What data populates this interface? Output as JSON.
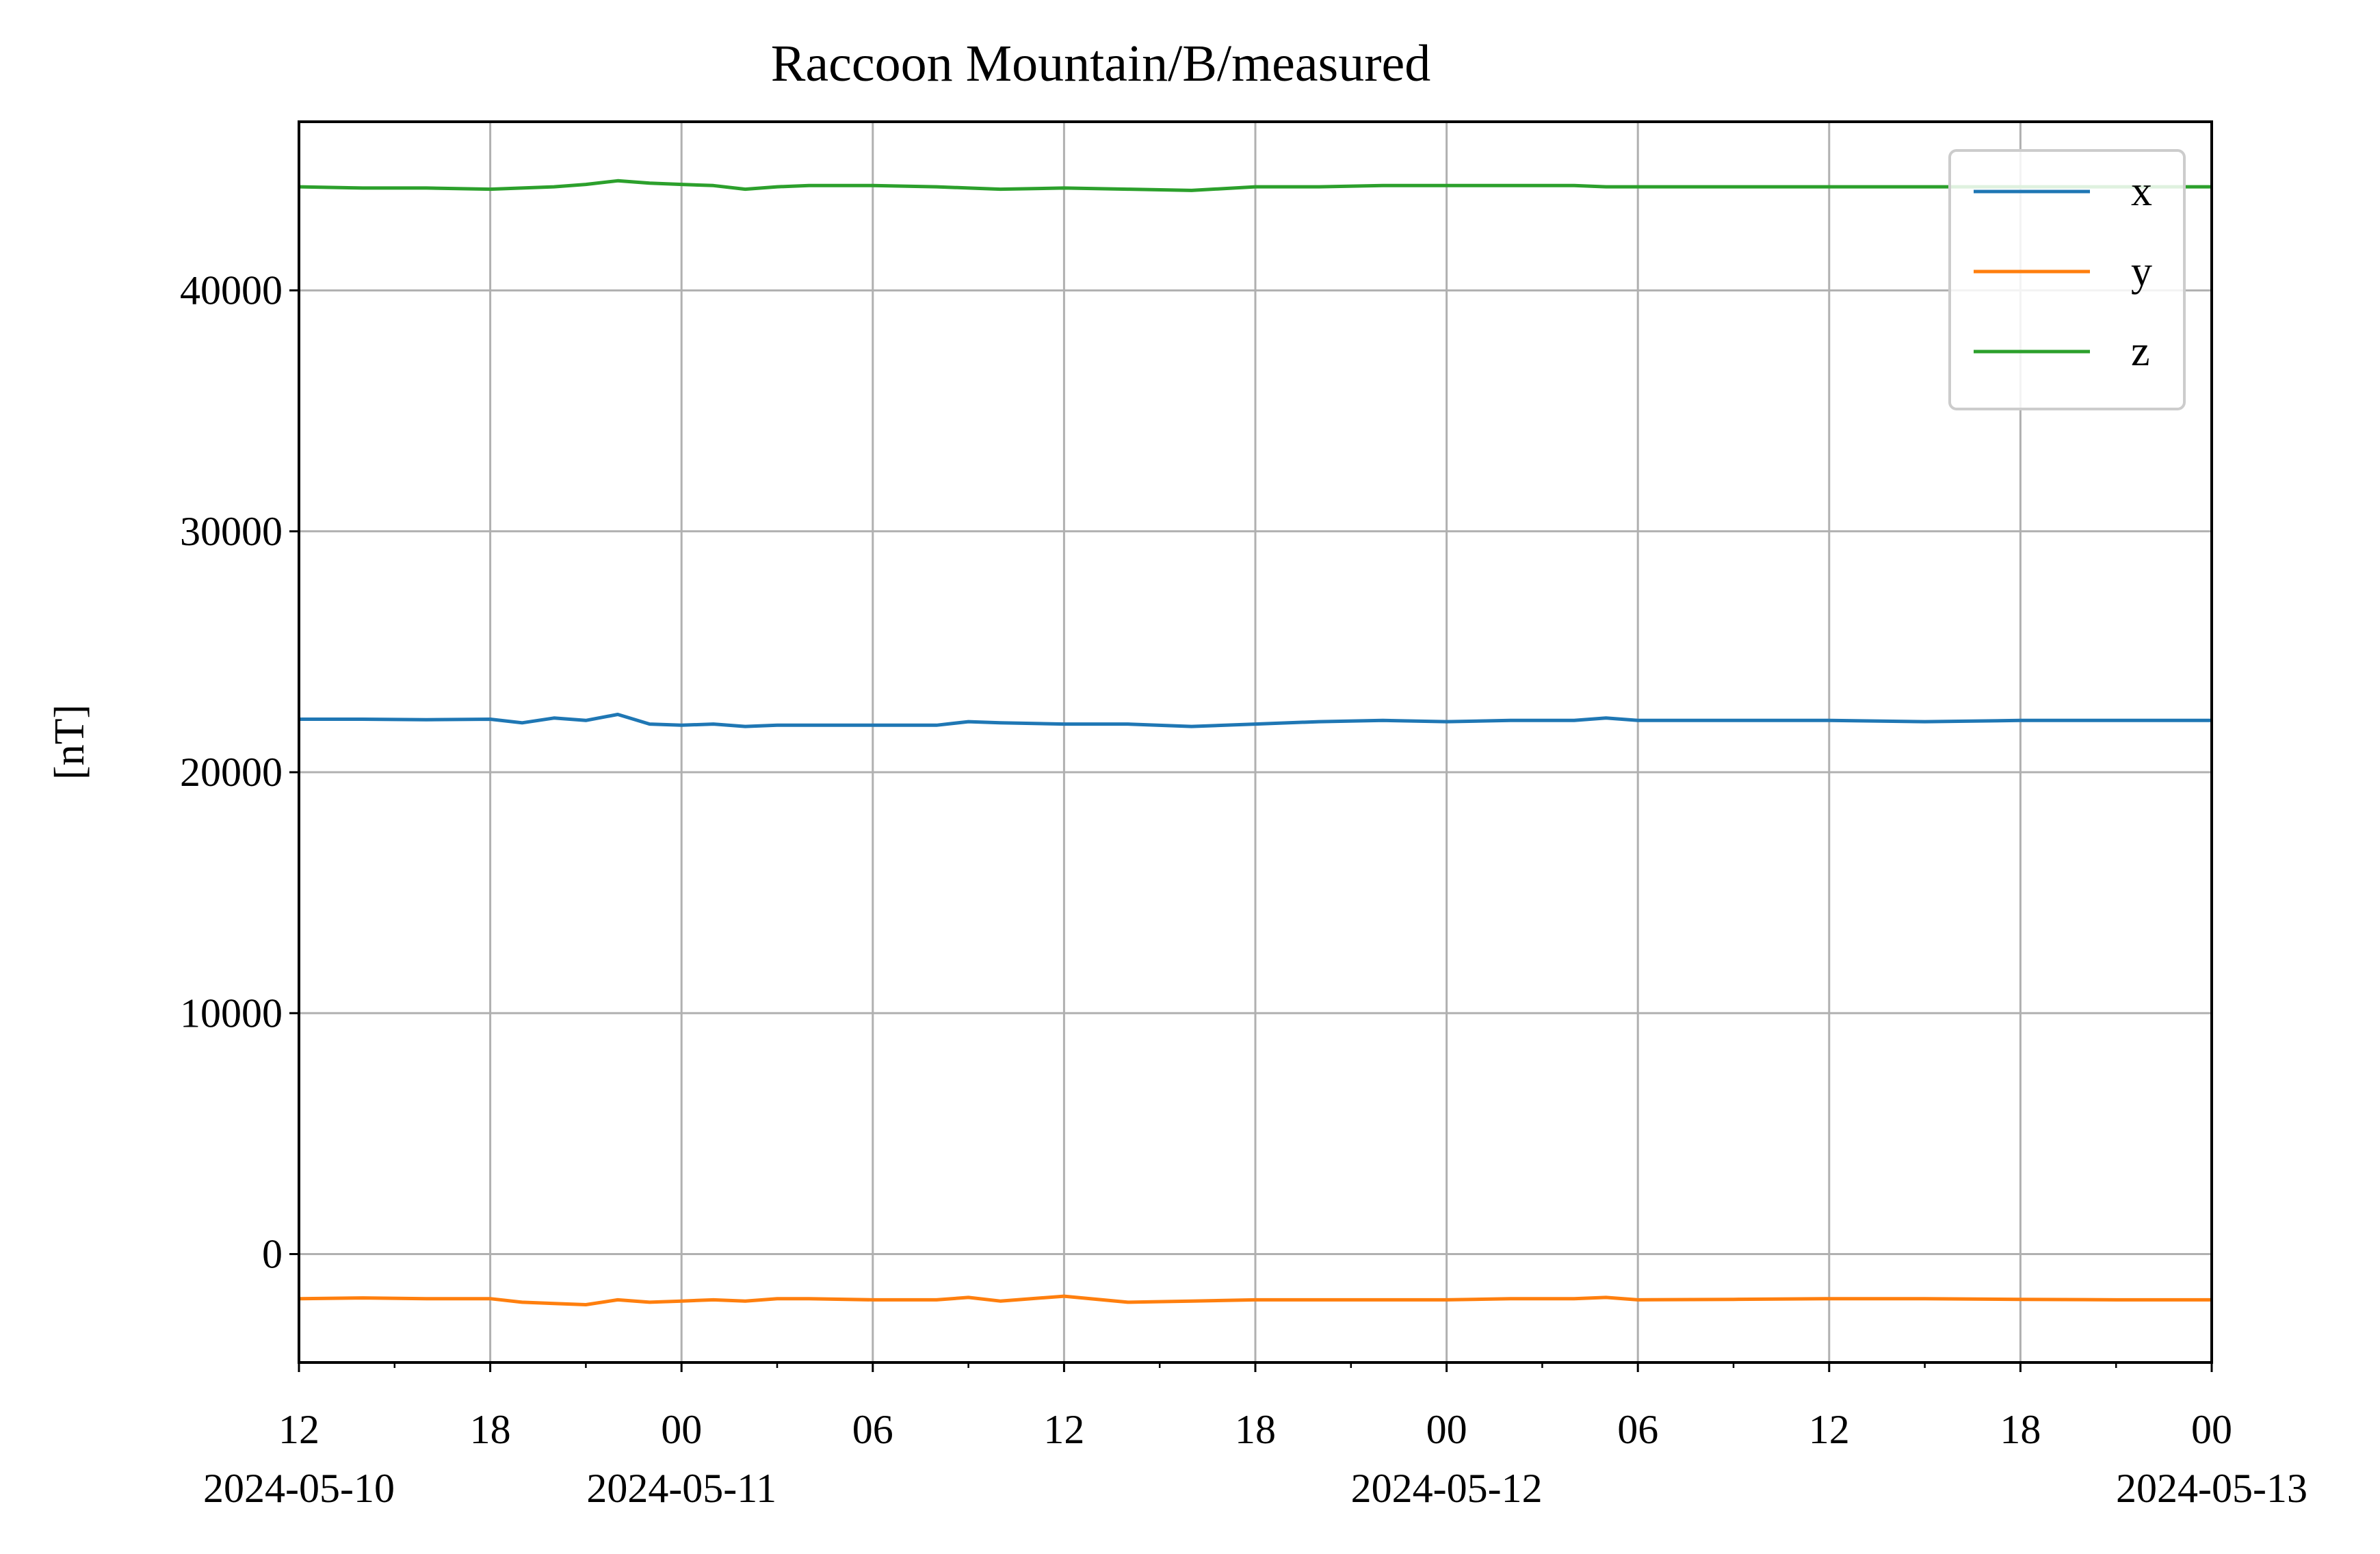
{
  "chart_data": {
    "type": "line",
    "title": "Raccoon Mountain/B/measured",
    "xlabel": "",
    "ylabel": "[nT]",
    "xlim": [
      "2024-05-10 12:00",
      "2024-05-13 00:00"
    ],
    "ylim": [
      -4500,
      47000
    ],
    "grid": true,
    "legend_position": "top-right",
    "y_ticks": [
      0,
      10000,
      20000,
      30000,
      40000
    ],
    "y_tick_labels": [
      "0",
      "10000",
      "20000",
      "30000",
      "40000"
    ],
    "x_ticks": [
      "2024-05-10 12:00",
      "2024-05-10 18:00",
      "2024-05-11 00:00",
      "2024-05-11 06:00",
      "2024-05-11 12:00",
      "2024-05-11 18:00",
      "2024-05-12 00:00",
      "2024-05-12 06:00",
      "2024-05-12 12:00",
      "2024-05-12 18:00",
      "2024-05-13 00:00"
    ],
    "x_tick_labels": [
      "12",
      "18",
      "00",
      "06",
      "12",
      "18",
      "00",
      "06",
      "12",
      "18",
      "00"
    ],
    "x_date_labels": [
      {
        "at": "2024-05-10 12:00",
        "label": "2024-05-10"
      },
      {
        "at": "2024-05-11 00:00",
        "label": "2024-05-11"
      },
      {
        "at": "2024-05-12 00:00",
        "label": "2024-05-12"
      },
      {
        "at": "2024-05-13 00:00",
        "label": "2024-05-13"
      }
    ],
    "x_minor_ticks": [
      "2024-05-10 15:00",
      "2024-05-10 21:00",
      "2024-05-11 03:00",
      "2024-05-11 09:00",
      "2024-05-11 15:00",
      "2024-05-11 21:00",
      "2024-05-12 03:00",
      "2024-05-12 09:00",
      "2024-05-12 15:00",
      "2024-05-12 21:00"
    ],
    "x": [
      "2024-05-10 12:00",
      "2024-05-10 14:00",
      "2024-05-10 16:00",
      "2024-05-10 18:00",
      "2024-05-10 19:00",
      "2024-05-10 20:00",
      "2024-05-10 21:00",
      "2024-05-10 22:00",
      "2024-05-10 23:00",
      "2024-05-11 00:00",
      "2024-05-11 01:00",
      "2024-05-11 02:00",
      "2024-05-11 03:00",
      "2024-05-11 04:00",
      "2024-05-11 06:00",
      "2024-05-11 08:00",
      "2024-05-11 09:00",
      "2024-05-11 10:00",
      "2024-05-11 12:00",
      "2024-05-11 14:00",
      "2024-05-11 16:00",
      "2024-05-11 18:00",
      "2024-05-11 20:00",
      "2024-05-11 22:00",
      "2024-05-12 00:00",
      "2024-05-12 02:00",
      "2024-05-12 04:00",
      "2024-05-12 05:00",
      "2024-05-12 06:00",
      "2024-05-12 09:00",
      "2024-05-12 12:00",
      "2024-05-12 15:00",
      "2024-05-12 18:00",
      "2024-05-12 21:00",
      "2024-05-13 00:00"
    ],
    "series": [
      {
        "name": "x",
        "color": "#1f77b4",
        "values": [
          22200,
          22200,
          22180,
          22200,
          22050,
          22250,
          22150,
          22400,
          22000,
          21950,
          22000,
          21900,
          21950,
          21950,
          21950,
          21950,
          22100,
          22050,
          22000,
          22000,
          21900,
          22000,
          22100,
          22150,
          22100,
          22150,
          22150,
          22250,
          22150,
          22150,
          22150,
          22100,
          22150,
          22150,
          22150
        ]
      },
      {
        "name": "y",
        "color": "#ff7f0e",
        "values": [
          -1850,
          -1820,
          -1850,
          -1850,
          -2000,
          -2050,
          -2100,
          -1900,
          -2000,
          -1950,
          -1900,
          -1950,
          -1850,
          -1850,
          -1900,
          -1900,
          -1800,
          -1950,
          -1750,
          -2000,
          -1950,
          -1900,
          -1900,
          -1900,
          -1900,
          -1850,
          -1850,
          -1800,
          -1900,
          -1880,
          -1850,
          -1850,
          -1880,
          -1900,
          -1900
        ]
      },
      {
        "name": "z",
        "color": "#2ca02c",
        "values": [
          44300,
          44250,
          44250,
          44200,
          44250,
          44300,
          44400,
          44550,
          44450,
          44400,
          44350,
          44200,
          44300,
          44350,
          44350,
          44300,
          44250,
          44200,
          44250,
          44200,
          44150,
          44300,
          44300,
          44350,
          44350,
          44350,
          44350,
          44300,
          44300,
          44300,
          44300,
          44300,
          44300,
          44300,
          44300
        ]
      }
    ]
  }
}
